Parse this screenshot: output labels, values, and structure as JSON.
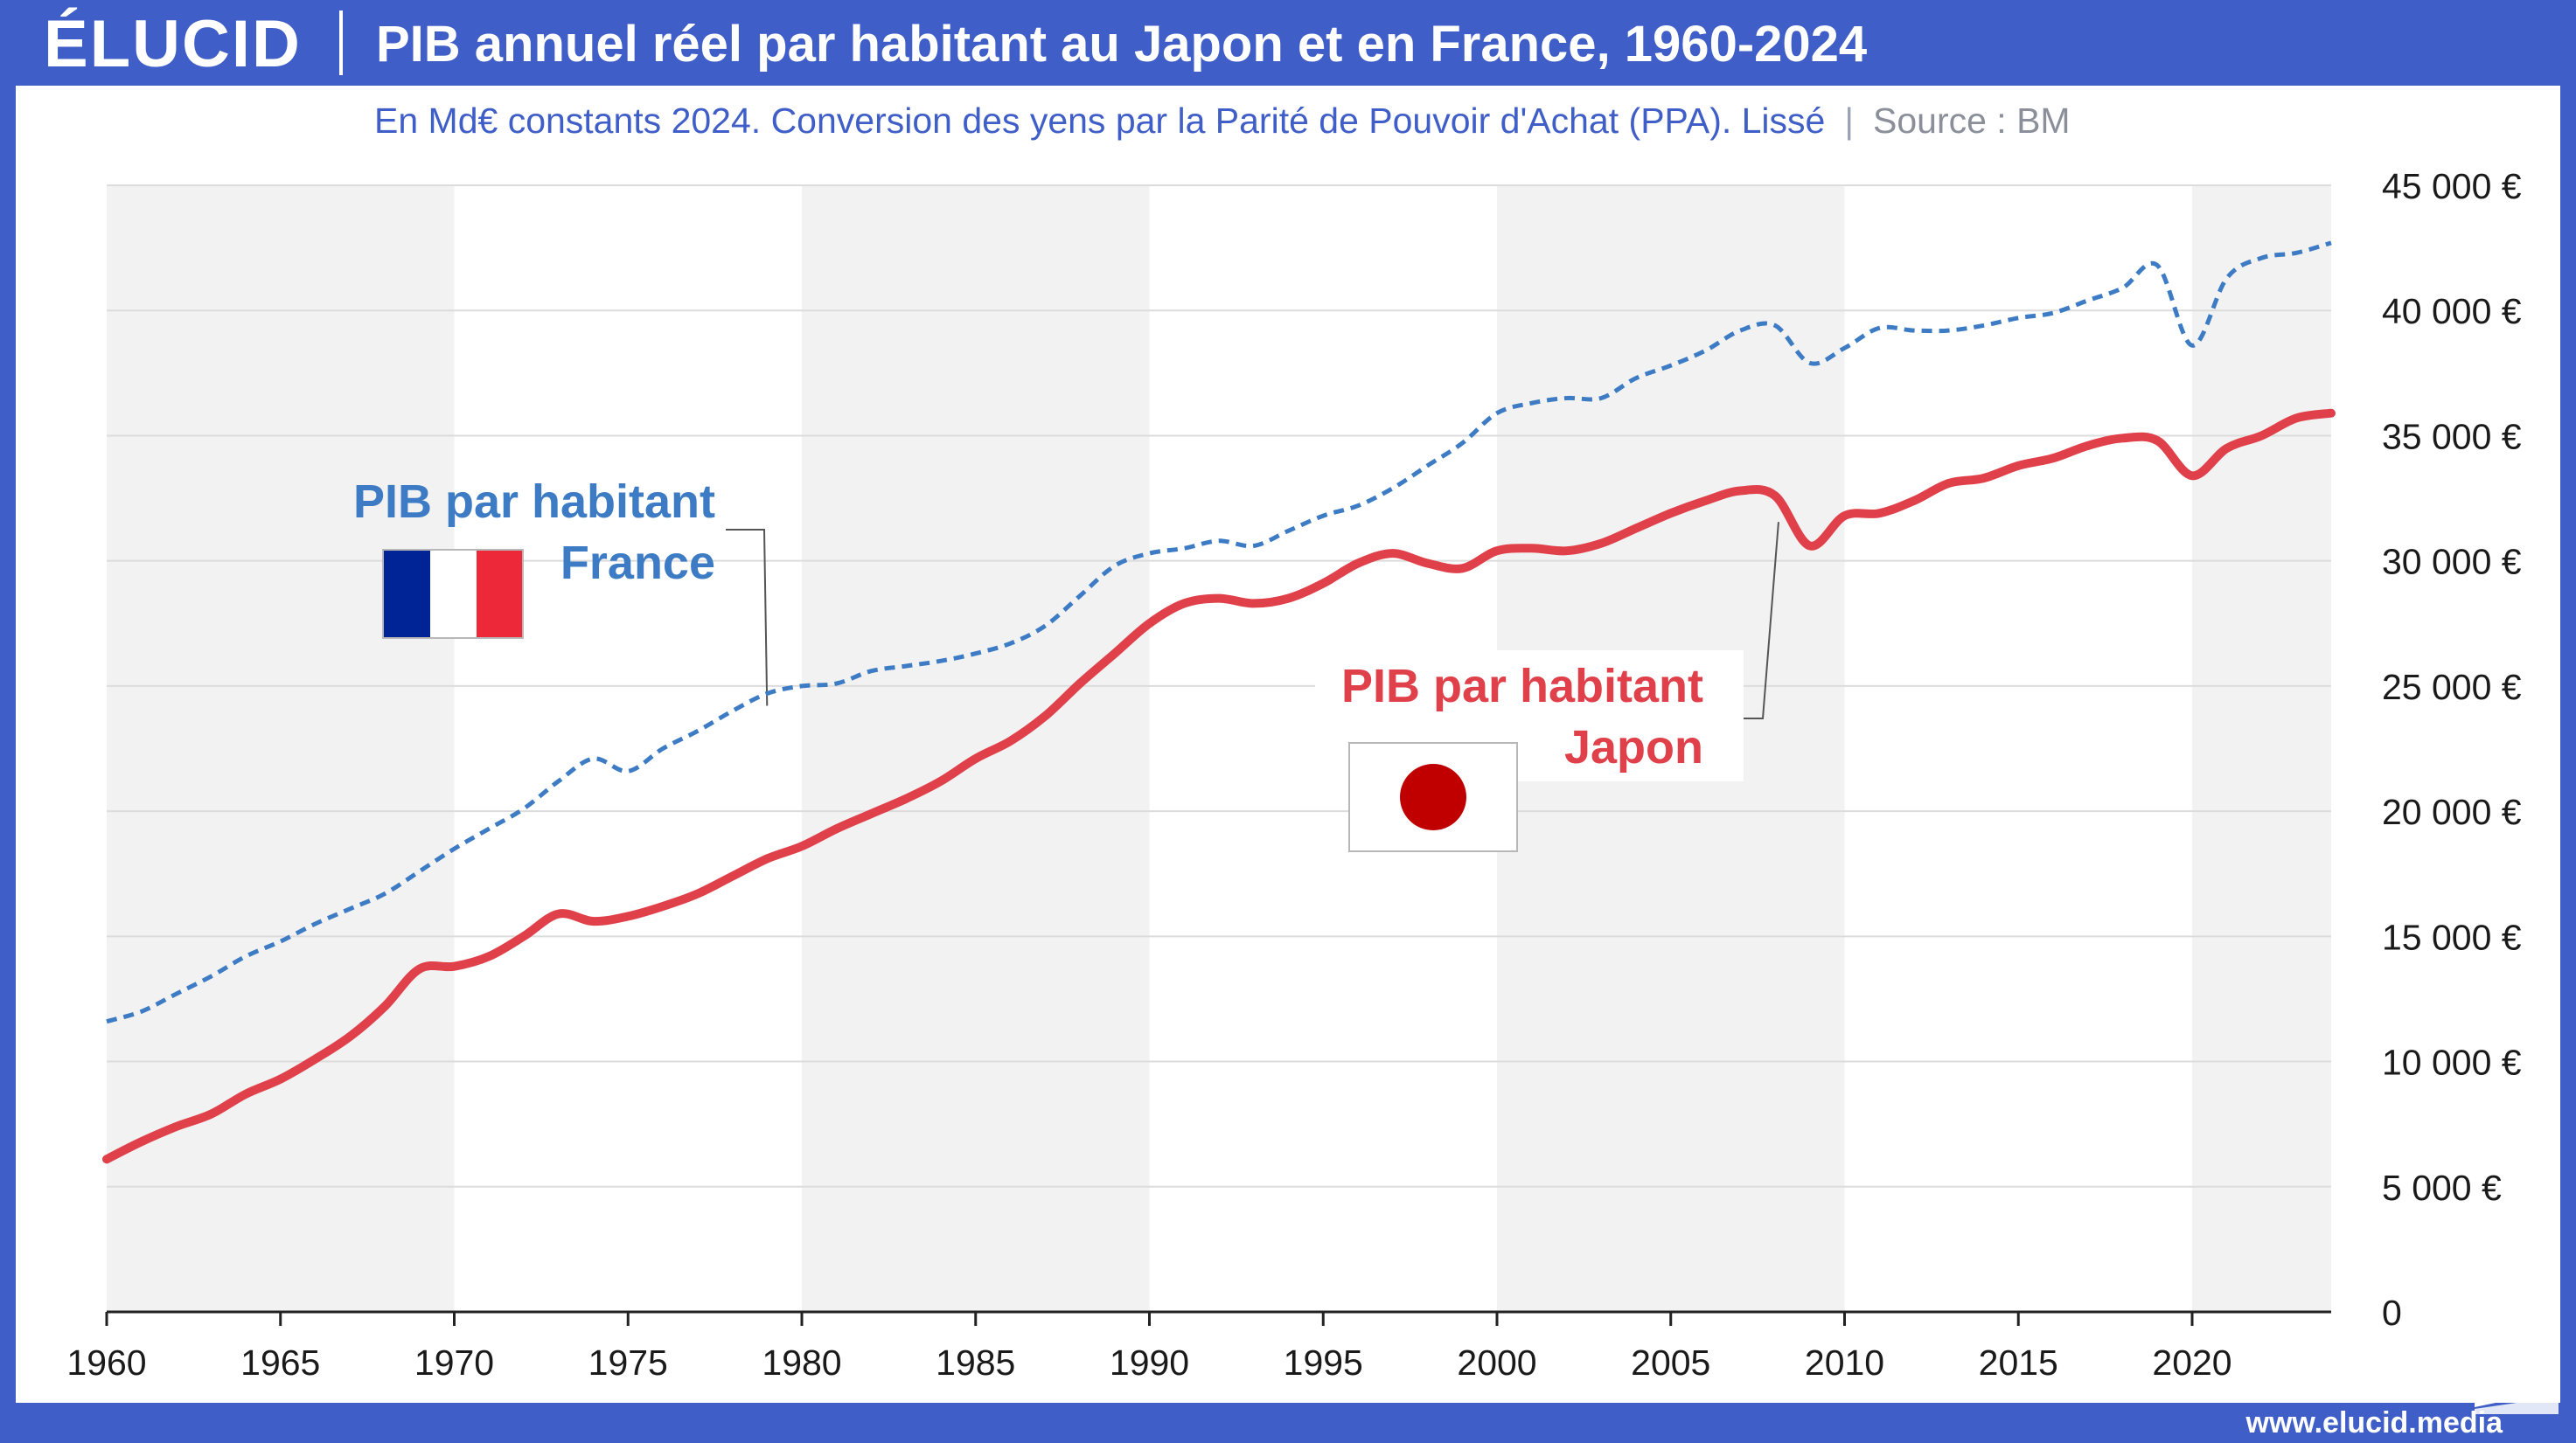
{
  "brand": {
    "logo_text": "ÉLUCID",
    "website": "www.elucid.media"
  },
  "header": {
    "title": "PIB annuel réel par habitant au Japon et en France, 1960-2024"
  },
  "subtitle": {
    "description": "En Md€ constants 2024. Conversion des yens par la Parité de Pouvoir d'Achat (PPA). Lissé",
    "separator": "|",
    "source": "Source : BM"
  },
  "colors": {
    "accent": "#3f5ec7",
    "france": "#3d7cc4",
    "japan": "#e0404a",
    "band": "#f2f2f2",
    "grid": "#dcdcdc",
    "flag_red_disc": "#c00000"
  },
  "chart_data": {
    "type": "line",
    "title": "PIB annuel réel par habitant au Japon et en France, 1960-2024",
    "xlabel": "",
    "ylabel": "",
    "xlim": [
      1960,
      2024
    ],
    "ylim": [
      0,
      45000
    ],
    "x_ticks": [
      1960,
      1965,
      1970,
      1975,
      1980,
      1985,
      1990,
      1995,
      2000,
      2005,
      2010,
      2015,
      2020
    ],
    "x_tick_labels": [
      "1960",
      "1965",
      "1970",
      "1975",
      "1980",
      "1985",
      "1990",
      "1995",
      "2000",
      "2005",
      "2010",
      "2015",
      "2020"
    ],
    "y_ticks": [
      0,
      5000,
      10000,
      15000,
      20000,
      25000,
      30000,
      35000,
      40000,
      45000
    ],
    "y_tick_labels": [
      "0",
      "5 000 €",
      "10 000 €",
      "15 000 €",
      "20 000 €",
      "25 000 €",
      "30 000 €",
      "35 000 €",
      "40 000 €",
      "45 000 €"
    ],
    "grid": true,
    "background_bands": [
      [
        1960,
        1970
      ],
      [
        1980,
        1990
      ],
      [
        2000,
        2010
      ],
      [
        2020,
        2024
      ]
    ],
    "x": [
      1960,
      1961,
      1962,
      1963,
      1964,
      1965,
      1966,
      1967,
      1968,
      1969,
      1970,
      1971,
      1972,
      1973,
      1974,
      1975,
      1976,
      1977,
      1978,
      1979,
      1980,
      1981,
      1982,
      1983,
      1984,
      1985,
      1986,
      1987,
      1988,
      1989,
      1990,
      1991,
      1992,
      1993,
      1994,
      1995,
      1996,
      1997,
      1998,
      1999,
      2000,
      2001,
      2002,
      2003,
      2004,
      2005,
      2006,
      2007,
      2008,
      2009,
      2010,
      2011,
      2012,
      2013,
      2014,
      2015,
      2016,
      2017,
      2018,
      2019,
      2020,
      2021,
      2022,
      2023,
      2024
    ],
    "series": [
      {
        "name": "France",
        "label_lines": [
          "PIB par habitant",
          "France"
        ],
        "style": "dashed",
        "values": [
          11600,
          12000,
          12700,
          13400,
          14200,
          14800,
          15500,
          16100,
          16700,
          17600,
          18500,
          19300,
          20100,
          21200,
          22100,
          21600,
          22500,
          23200,
          24000,
          24700,
          25000,
          25100,
          25600,
          25800,
          26000,
          26300,
          26700,
          27400,
          28600,
          29800,
          30300,
          30500,
          30800,
          30600,
          31200,
          31800,
          32200,
          32900,
          33800,
          34700,
          35900,
          36300,
          36500,
          36500,
          37300,
          37800,
          38400,
          39200,
          39400,
          37900,
          38500,
          39300,
          39200,
          39200,
          39400,
          39700,
          39900,
          40400,
          40900,
          41800,
          38600,
          41300,
          42100,
          42300,
          42700
        ]
      },
      {
        "name": "Japon",
        "label_lines": [
          "PIB par habitant",
          "Japon"
        ],
        "style": "solid",
        "values": [
          6100,
          6800,
          7400,
          7900,
          8700,
          9300,
          10100,
          11000,
          12200,
          13700,
          13800,
          14200,
          15000,
          15900,
          15600,
          15800,
          16200,
          16700,
          17400,
          18100,
          18600,
          19300,
          19900,
          20500,
          21200,
          22100,
          22800,
          23800,
          25100,
          26300,
          27500,
          28300,
          28500,
          28300,
          28500,
          29100,
          29900,
          30300,
          29900,
          29700,
          30400,
          30500,
          30400,
          30700,
          31300,
          31900,
          32400,
          32800,
          32600,
          30600,
          31800,
          31900,
          32400,
          33100,
          33300,
          33800,
          34100,
          34600,
          34900,
          34800,
          33400,
          34500,
          35000,
          35700,
          35900
        ]
      }
    ]
  }
}
